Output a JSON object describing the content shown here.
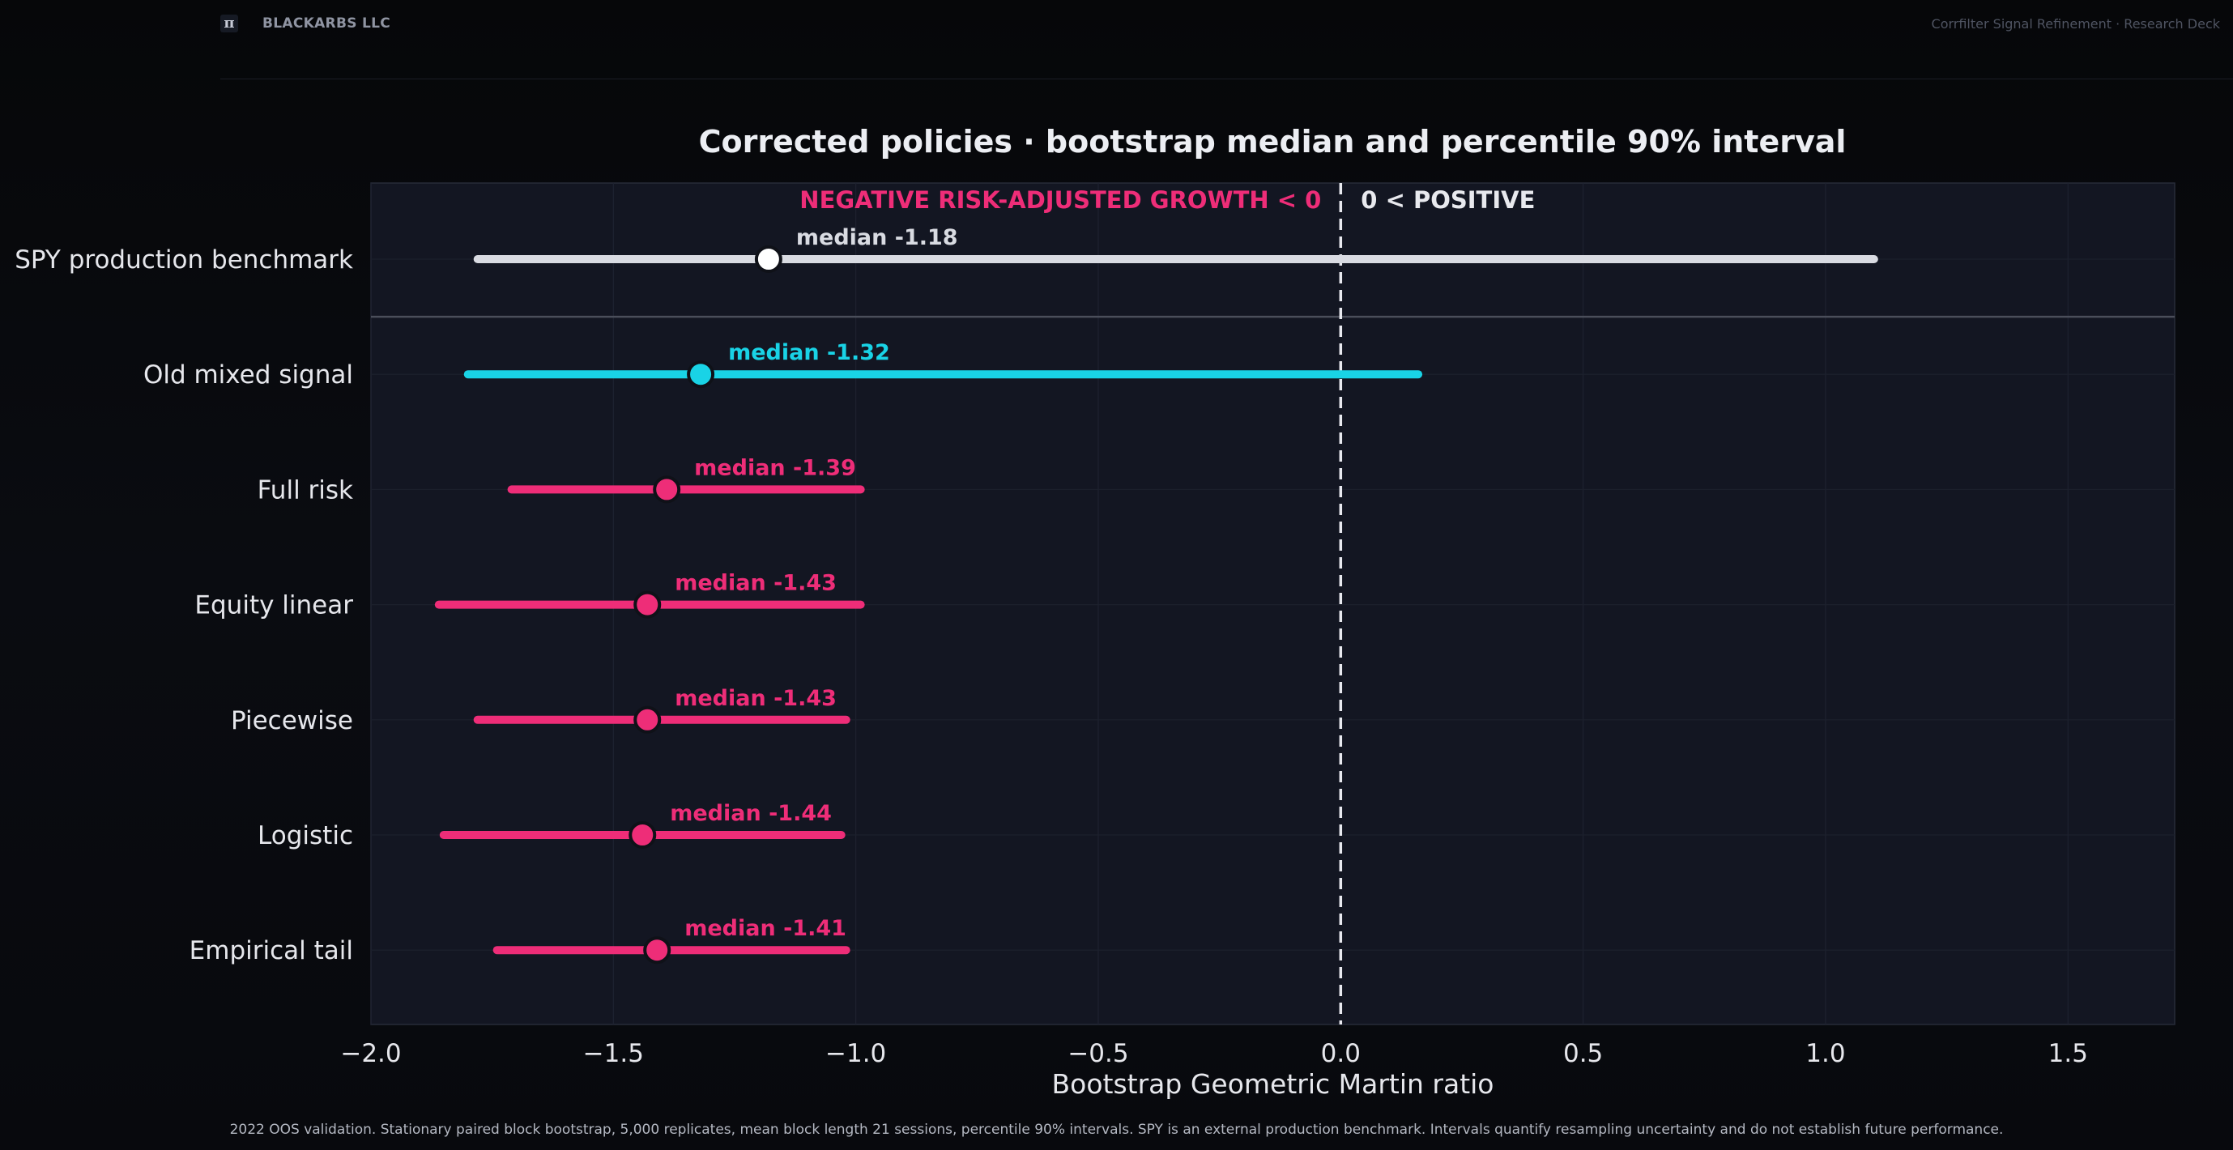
{
  "header": {
    "logo_glyph": "π",
    "brand": "BLACKARBS LLC",
    "deck_title": "Corrfilter Signal Refinement · Research Deck"
  },
  "footnote": "2022 OOS validation. Stationary paired block bootstrap, 5,000 replicates, mean block length 21 sessions, percentile 90% intervals. SPY is an external production benchmark. Intervals quantify resampling uncertainty and do not establish future performance.",
  "chart_data": {
    "type": "interval",
    "title": "Corrected policies · bootstrap median and percentile 90% interval",
    "xlabel": "Bootstrap Geometric Martin ratio",
    "ylabel": "",
    "xlim": [
      -2.0,
      1.72
    ],
    "xticks": [
      -2.0,
      -1.5,
      -1.0,
      -0.5,
      0.0,
      0.5,
      1.0,
      1.5
    ],
    "xtick_labels": [
      "−2.0",
      "−1.5",
      "−1.0",
      "−0.5",
      "0.0",
      "0.5",
      "1.0",
      "1.5"
    ],
    "reference_line": 0.0,
    "annotation_negative": "NEGATIVE RISK-ADJUSTED GROWTH  <  0",
    "annotation_positive": "0  <  POSITIVE",
    "grid": true,
    "colors": {
      "benchmark": "#d9dbe2",
      "old_signal": "#19d3e6",
      "corrected": "#ee2d78",
      "negative_annotation": "#ee2d78",
      "positive_annotation": "#e8e9ee",
      "plot_bg": "#131622"
    },
    "series": [
      {
        "name": "SPY production benchmark",
        "low": -1.78,
        "median": -1.18,
        "high": 1.1,
        "label": "median -1.18",
        "group": "benchmark"
      },
      {
        "name": "Old mixed signal",
        "low": -1.8,
        "median": -1.32,
        "high": 0.16,
        "label": "median -1.32",
        "group": "old_signal"
      },
      {
        "name": "Full risk",
        "low": -1.71,
        "median": -1.39,
        "high": -0.99,
        "label": "median -1.39",
        "group": "corrected"
      },
      {
        "name": "Equity linear",
        "low": -1.86,
        "median": -1.43,
        "high": -0.99,
        "label": "median -1.43",
        "group": "corrected"
      },
      {
        "name": "Piecewise",
        "low": -1.78,
        "median": -1.43,
        "high": -1.02,
        "label": "median -1.43",
        "group": "corrected"
      },
      {
        "name": "Logistic",
        "low": -1.85,
        "median": -1.44,
        "high": -1.03,
        "label": "median -1.44",
        "group": "corrected"
      },
      {
        "name": "Empirical tail",
        "low": -1.74,
        "median": -1.41,
        "high": -1.02,
        "label": "median -1.41",
        "group": "corrected"
      }
    ]
  }
}
